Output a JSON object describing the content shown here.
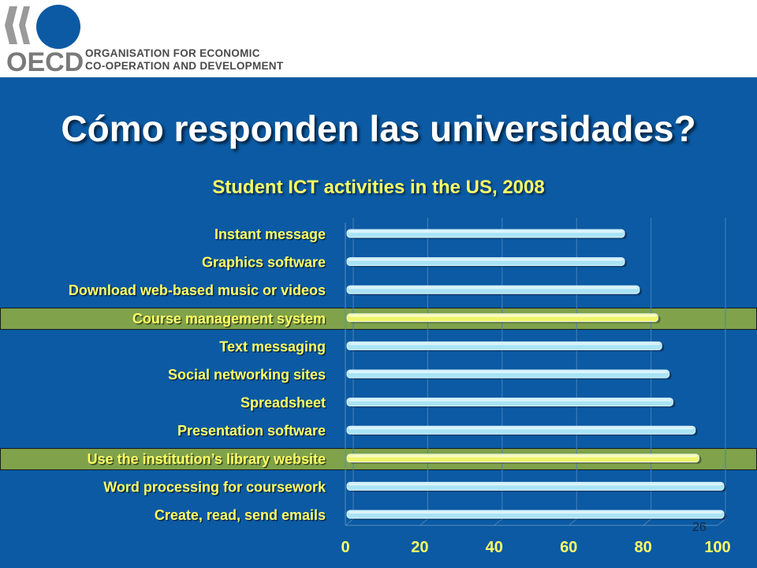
{
  "header": {
    "logo_text": "OECD",
    "org_line1": "ORGANISATION FOR ECONOMIC",
    "org_line2": "CO-OPERATION AND DEVELOPMENT"
  },
  "slide": {
    "title": "Cómo responden las universidades?",
    "page_number": "26"
  },
  "colors": {
    "background": "#0b5aa3",
    "title": "#ffffff",
    "subtitle": "#ffff66",
    "bar": "#a9e4f5",
    "highlight_bar": "#f0f56a",
    "highlight_band": "#7fa24a"
  },
  "chart_data": {
    "type": "bar",
    "orientation": "horizontal",
    "title": "Student ICT activities in the US, 2008",
    "categories": [
      "Instant message",
      "Graphics software",
      "Download web-based music or videos",
      "Course management system",
      "Text messaging",
      "Social networking sites",
      "Spreadsheet",
      "Presentation software",
      "Use the institution’s library website",
      "Word processing for coursework",
      "Create, read, send emails"
    ],
    "values": [
      75,
      75,
      79,
      84,
      85,
      87,
      88,
      94,
      95,
      102,
      102
    ],
    "highlighted": [
      false,
      false,
      false,
      true,
      false,
      false,
      false,
      false,
      true,
      false,
      false
    ],
    "xlim": [
      0,
      100
    ],
    "xticks": [
      0,
      20,
      40,
      60,
      80,
      100
    ],
    "grid": true,
    "legend": "none"
  }
}
